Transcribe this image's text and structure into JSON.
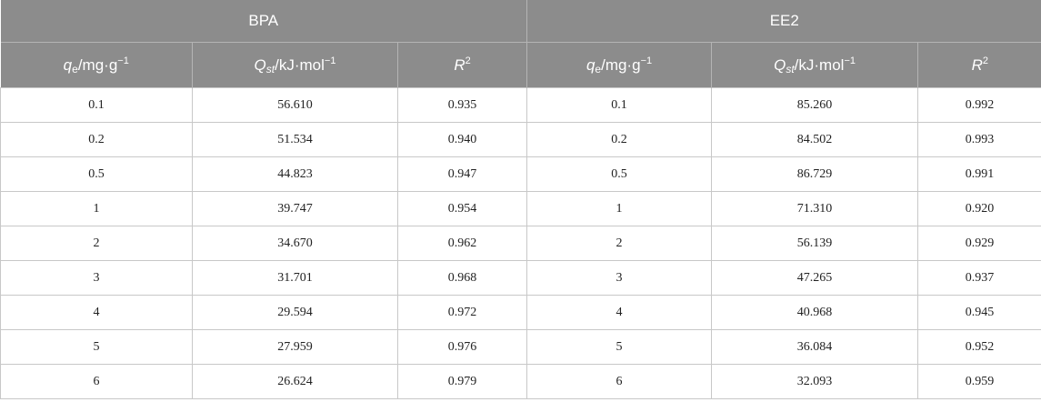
{
  "groups": [
    "BPA",
    "EE2"
  ],
  "columns": {
    "q": {
      "sym": "q",
      "sub": "e",
      "unit": "/mg·g",
      "exp": "−1"
    },
    "Q": {
      "sym": "Q",
      "sub": "st",
      "unit": "/kJ·mol",
      "exp": "−1"
    },
    "R": {
      "sym": "R",
      "exp": "2"
    }
  },
  "rows": [
    [
      "0.1",
      "56.610",
      "0.935",
      "0.1",
      "85.260",
      "0.992"
    ],
    [
      "0.2",
      "51.534",
      "0.940",
      "0.2",
      "84.502",
      "0.993"
    ],
    [
      "0.5",
      "44.823",
      "0.947",
      "0.5",
      "86.729",
      "0.991"
    ],
    [
      "1",
      "39.747",
      "0.954",
      "1",
      "71.310",
      "0.920"
    ],
    [
      "2",
      "34.670",
      "0.962",
      "2",
      "56.139",
      "0.929"
    ],
    [
      "3",
      "31.701",
      "0.968",
      "3",
      "47.265",
      "0.937"
    ],
    [
      "4",
      "29.594",
      "0.972",
      "4",
      "40.968",
      "0.945"
    ],
    [
      "5",
      "27.959",
      "0.976",
      "5",
      "36.084",
      "0.952"
    ],
    [
      "6",
      "26.624",
      "0.979",
      "6",
      "32.093",
      "0.959"
    ]
  ]
}
